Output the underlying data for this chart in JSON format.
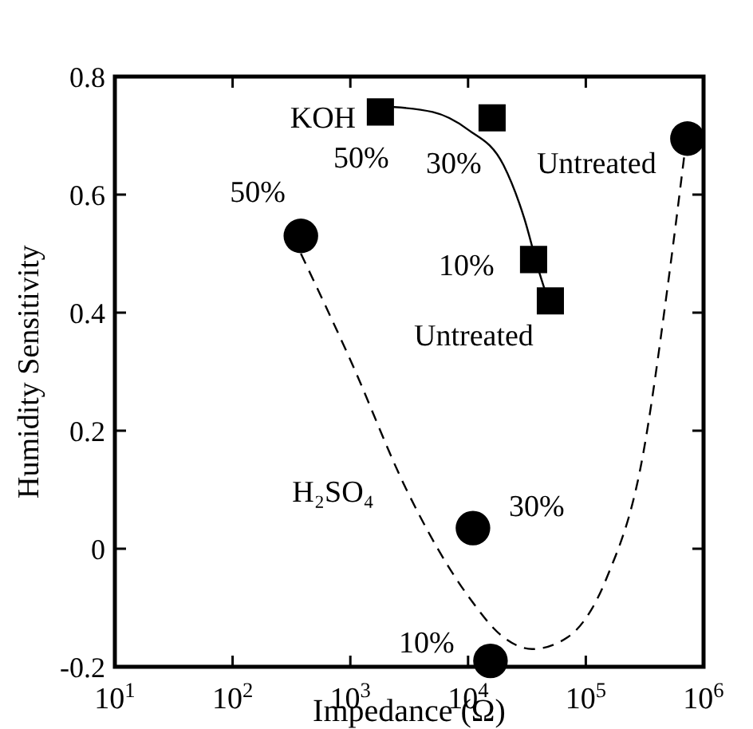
{
  "chart_data": {
    "type": "scatter",
    "xlabel": "Impedance (Ω)",
    "ylabel": "Humidity Sensitivity",
    "log": "x",
    "grid": false,
    "xlim": [
      10,
      1000000
    ],
    "xticks": [
      {
        "value": 10,
        "label": "10$^{1}$"
      },
      {
        "value": 100,
        "label": "10$^{2}$"
      },
      {
        "value": 1000,
        "label": "10$^{3}$"
      },
      {
        "value": 10000,
        "label": "10$^{4}$"
      },
      {
        "value": 100000,
        "label": "10$^{5}$"
      },
      {
        "value": 1000000,
        "label": "10$^{6}$"
      }
    ],
    "ylim": [
      -0.2,
      0.8
    ],
    "yticks": [
      -0.2,
      0,
      0.2,
      0.4,
      0.6,
      0.8
    ],
    "series": [
      {
        "type": "line",
        "color": "#000000",
        "marker": "none",
        "line_style": "solid",
        "x": [
          1800,
          5000,
          10000,
          20000,
          30000,
          40000,
          50000
        ],
        "values": [
          0.75,
          0.74,
          0.71,
          0.65,
          0.56,
          0.47,
          0.41
        ]
      },
      {
        "type": "line",
        "color": "#000000",
        "marker": "none",
        "line_style": "dashed",
        "x": [
          380,
          1000,
          3000,
          10000,
          20000,
          35000,
          70000,
          150000,
          300000,
          500000,
          700000
        ],
        "values": [
          0.5,
          0.32,
          0.1,
          -0.08,
          -0.15,
          -0.17,
          -0.15,
          -0.05,
          0.15,
          0.45,
          0.68
        ]
      },
      {
        "color": "#000000",
        "marker": "square",
        "x": [
          1800,
          16000,
          36000,
          50000
        ],
        "values": [
          0.74,
          0.73,
          0.49,
          0.42
        ]
      },
      {
        "color": "#000000",
        "marker": "circle",
        "x": [
          380,
          11000,
          15500,
          730000
        ],
        "values": [
          0.53,
          0.035,
          -0.19,
          0.695
        ]
      }
    ],
    "annotations": [
      {
        "text": "KOH",
        "x": 1800,
        "y": 0.74
      },
      {
        "text": "50%",
        "x": 1800,
        "y": 0.74
      },
      {
        "text": "30%",
        "x": 16000,
        "y": 0.73
      },
      {
        "text": "10%",
        "x": 36000,
        "y": 0.49
      },
      {
        "text": "Untreated",
        "x": 50000,
        "y": 0.42
      },
      {
        "text": "50%",
        "x": 380,
        "y": 0.53
      },
      {
        "text": "H₂SO₄",
        "x": 3000,
        "y": 0.1
      },
      {
        "text": "30%",
        "x": 11000,
        "y": 0.035
      },
      {
        "text": "10%",
        "x": 15500,
        "y": -0.19
      },
      {
        "text": "Untreated",
        "x": 730000,
        "y": 0.695
      }
    ]
  }
}
